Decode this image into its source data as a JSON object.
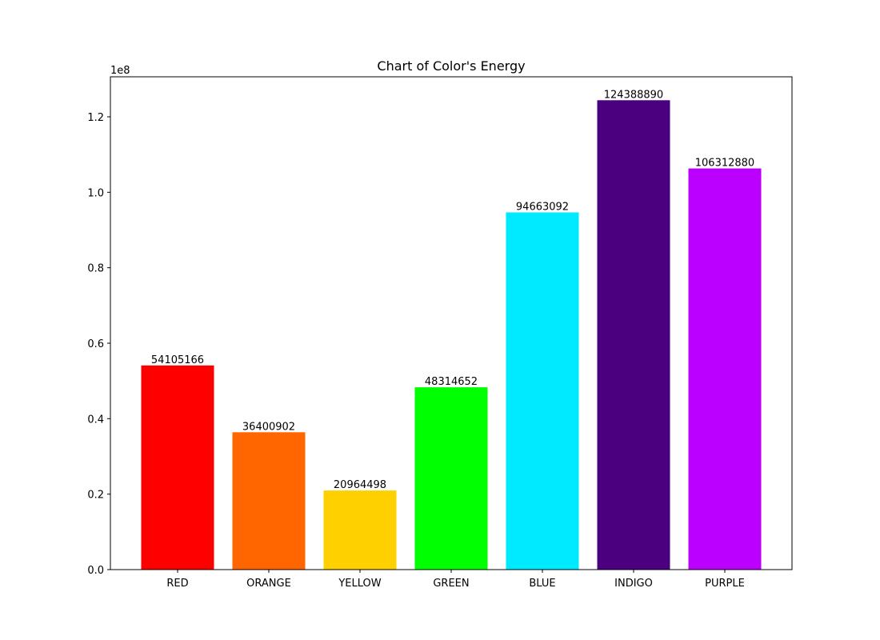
{
  "chart_data": {
    "type": "bar",
    "title": "Chart of Color's Energy",
    "xlabel": "",
    "ylabel": "",
    "offset_label": "1e8",
    "categories": [
      "RED",
      "ORANGE",
      "YELLOW",
      "GREEN",
      "BLUE",
      "INDIGO",
      "PURPLE"
    ],
    "values": [
      54105166,
      36400902,
      20964498,
      48314652,
      94663092,
      124388890,
      106312880
    ],
    "data_labels": [
      "54105166",
      "36400902",
      "20964498",
      "48314652",
      "94663092",
      "124388890",
      "106312880"
    ],
    "colors": [
      "#ff0000",
      "#ff6600",
      "#ffd000",
      "#00ff00",
      "#00eaff",
      "#4b0080",
      "#bb00ff"
    ],
    "ylim": [
      0,
      130600000
    ],
    "yticks": [
      0,
      20000000,
      40000000,
      60000000,
      80000000,
      100000000,
      120000000
    ],
    "ytick_labels": [
      "0.0",
      "0.2",
      "0.4",
      "0.6",
      "0.8",
      "1.0",
      "1.2"
    ],
    "grid": false,
    "legend": "none"
  }
}
